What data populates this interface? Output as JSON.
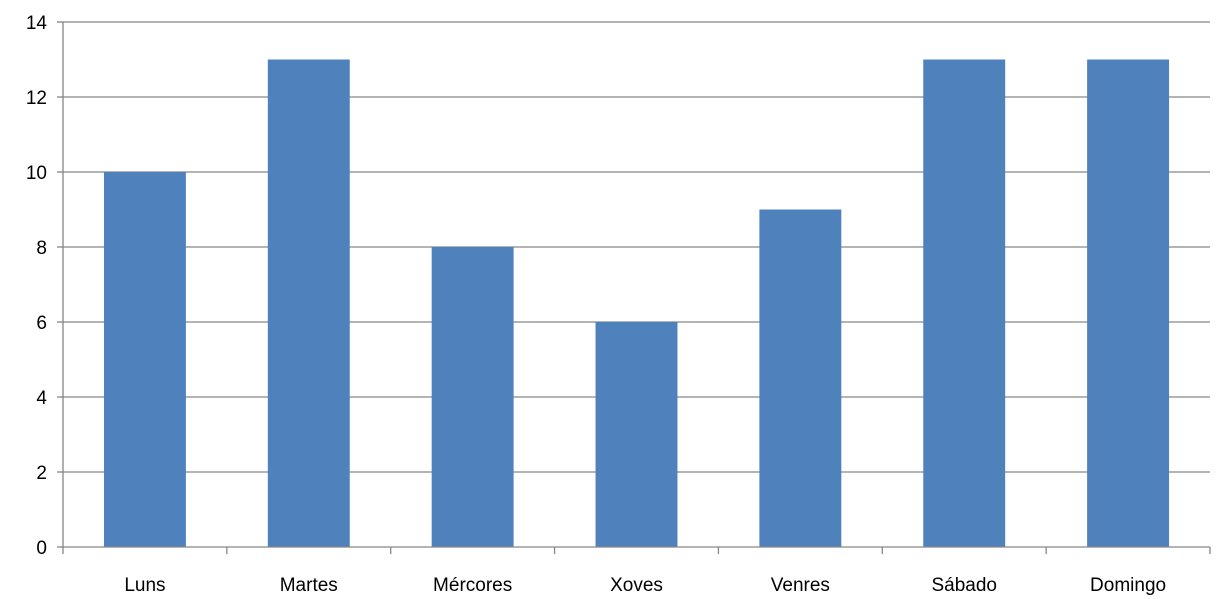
{
  "chart_data": {
    "type": "bar",
    "categories": [
      "Luns",
      "Martes",
      "Mércores",
      "Xoves",
      "Venres",
      "Sábado",
      "Domingo"
    ],
    "values": [
      10,
      13,
      8,
      6,
      9,
      13,
      13
    ],
    "title": "",
    "xlabel": "",
    "ylabel": "",
    "ylim": [
      0,
      14
    ],
    "yticks": [
      "0",
      "2",
      "4",
      "6",
      "8",
      "10",
      "12",
      "14"
    ],
    "grid": true,
    "legend": "none",
    "bar_color": "#4f81bd",
    "grid_color": "#868686"
  }
}
